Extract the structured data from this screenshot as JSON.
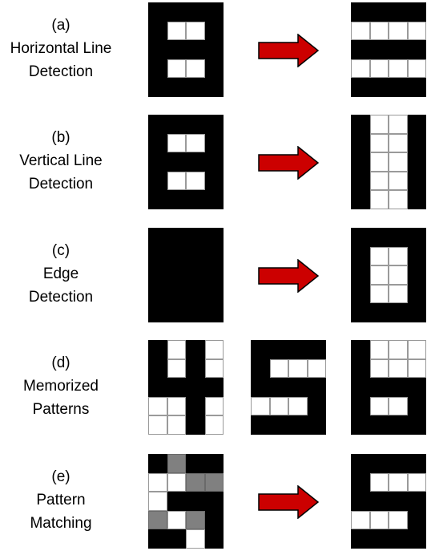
{
  "rows": [
    {
      "label": [
        "(a)",
        "Horizontal Line",
        "Detection"
      ],
      "grids": [
        [
          "kkkk",
          "kwwk",
          "kkkk",
          "kwwk",
          "kkkk"
        ],
        [
          "kkkk",
          "wwww",
          "kkkk",
          "wwww",
          "kkkk"
        ]
      ],
      "arrow": true
    },
    {
      "label": [
        "(b)",
        "Vertical Line",
        "Detection"
      ],
      "grids": [
        [
          "kkkk",
          "kwwk",
          "kkkk",
          "kwwk",
          "kkkk"
        ],
        [
          "kwwk",
          "kwwk",
          "kwwk",
          "kwwk",
          "kwwk"
        ]
      ],
      "arrow": true
    },
    {
      "label": [
        "(c)",
        "Edge",
        "Detection"
      ],
      "grids": [
        [
          "kkkk",
          "kkkk",
          "kkkk",
          "kkkk",
          "kkkk"
        ],
        [
          "kkkk",
          "kwwk",
          "kwwk",
          "kwwk",
          "kkkk"
        ]
      ],
      "arrow": true
    },
    {
      "label": [
        "(d)",
        "Memorized",
        "Patterns"
      ],
      "grids": [
        [
          "kwkw",
          "kwkw",
          "kkkk",
          "wwkw",
          "wwkw"
        ],
        [
          "kkkk",
          "kwww",
          "kkkk",
          "wwwk",
          "kkkk"
        ],
        [
          "kwww",
          "kwww",
          "kkkk",
          "kwwk",
          "kkkk"
        ]
      ],
      "arrow": false
    },
    {
      "label": [
        "(e)",
        "Pattern",
        "Matching"
      ],
      "grids": [
        [
          "kgkk",
          "wwgg",
          "wkkk",
          "gwgk",
          "kkwk"
        ],
        [
          "kkkk",
          "kwww",
          "kkkk",
          "wwwk",
          "kkkk"
        ]
      ],
      "arrow": true
    }
  ],
  "colors": {
    "black": "#000000",
    "white": "#ffffff",
    "gray": "#808080",
    "arrow_fill": "#cc0000",
    "arrow_stroke": "#000000"
  }
}
